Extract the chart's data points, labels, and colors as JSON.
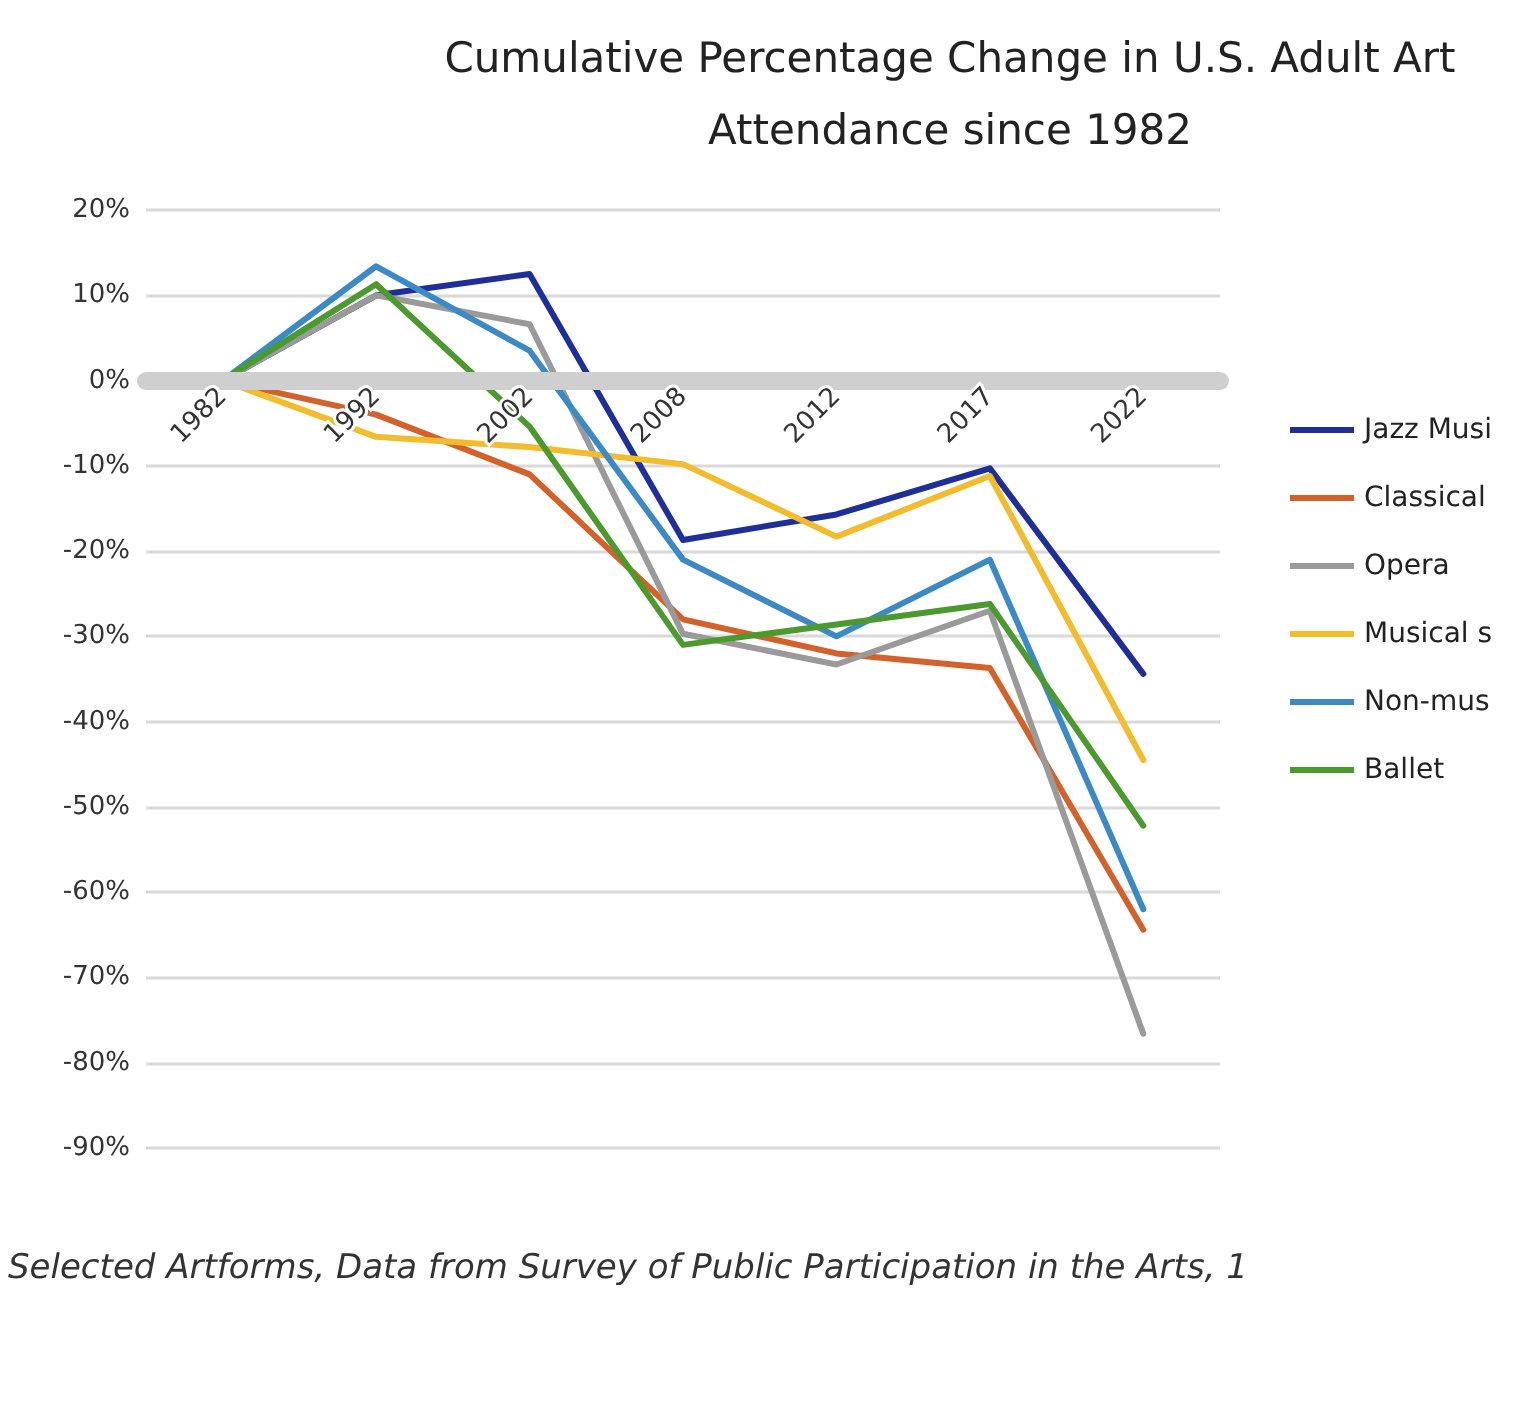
{
  "chart_data": {
    "type": "line",
    "title": "Cumulative Percentage Change in U.S. Adult Art\nAttendance since 1982",
    "categories": [
      "1982",
      "1992",
      "2002",
      "2008",
      "2012",
      "2017",
      "2022"
    ],
    "series": [
      {
        "name": "Jazz Musi",
        "color": "#1f2f99",
        "values": [
          0,
          10,
          12.5,
          -18.7,
          -15.7,
          -10.3,
          -34.4
        ]
      },
      {
        "name": "Classical",
        "color": "#d5612a",
        "values": [
          0,
          -4,
          -11,
          -28,
          -32,
          -33.7,
          -64.4
        ]
      },
      {
        "name": "Opera",
        "color": "#9a9a9a",
        "values": [
          0,
          10,
          6.6,
          -29.7,
          -33.3,
          -27,
          -76.6
        ]
      },
      {
        "name": "Musical s",
        "color": "#f2bc2c",
        "values": [
          0,
          -6.6,
          -7.8,
          -9.8,
          -18.3,
          -11.2,
          -44.5
        ]
      },
      {
        "name": "Non-mus",
        "color": "#3b8ac6",
        "values": [
          0,
          13.4,
          3.5,
          -21,
          -30,
          -21,
          -62
        ]
      },
      {
        "name": "Ballet",
        "color": "#4b9a2e",
        "values": [
          0,
          11.3,
          -5.4,
          -31,
          -28.6,
          -26.2,
          -52.2
        ]
      }
    ],
    "ylim": [
      -90,
      20
    ],
    "yticks": [
      {
        "value": -90,
        "label": "-90%"
      },
      {
        "value": -80,
        "label": "-80%"
      },
      {
        "value": -70,
        "label": "-70%"
      },
      {
        "value": -60,
        "label": "-60%"
      },
      {
        "value": -50,
        "label": "-50%"
      },
      {
        "value": -40,
        "label": "-40%"
      },
      {
        "value": -30,
        "label": "-30%"
      },
      {
        "value": -20,
        "label": "-20%"
      },
      {
        "value": -10,
        "label": "-10%"
      },
      {
        "value": 0,
        "label": "0%"
      },
      {
        "value": 10,
        "label": "10%"
      },
      {
        "value": 20,
        "label": "20%"
      }
    ],
    "grid": "y",
    "legend": "right",
    "marker": "none",
    "line_style": "solid",
    "annotations": [
      "Selected Artforms, Data from Survey of Public Participation in the Arts, 1"
    ]
  }
}
